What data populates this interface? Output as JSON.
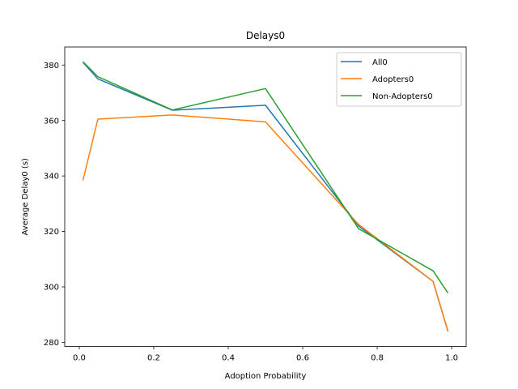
{
  "chart_data": {
    "type": "line",
    "title": "Delays0",
    "xlabel": "Adoption Probability",
    "ylabel": "Average Delay0 (s)",
    "xlim": [
      -0.039,
      1.039
    ],
    "ylim": [
      278.5,
      386.5
    ],
    "xticks": [
      0.0,
      0.2,
      0.4,
      0.6,
      0.8,
      1.0
    ],
    "xtick_labels": [
      "0.0",
      "0.2",
      "0.4",
      "0.6",
      "0.8",
      "1.0"
    ],
    "yticks": [
      280,
      300,
      320,
      340,
      360,
      380
    ],
    "ytick_labels": [
      "280",
      "300",
      "320",
      "340",
      "360",
      "380"
    ],
    "x": [
      0.01,
      0.05,
      0.25,
      0.5,
      0.75,
      0.95,
      0.99
    ],
    "series": [
      {
        "name": "All0",
        "color": "#1f77b4",
        "values": [
          381.0,
          375.0,
          363.7,
          365.5,
          322.0,
          302.0,
          284.0
        ]
      },
      {
        "name": "Adopters0",
        "color": "#ff7f0e",
        "values": [
          338.5,
          360.5,
          362.0,
          359.5,
          322.5,
          302.0,
          284.0
        ]
      },
      {
        "name": "Non-Adopters0",
        "color": "#2ca02c",
        "values": [
          381.2,
          375.8,
          363.8,
          371.5,
          321.0,
          305.8,
          297.8
        ]
      }
    ],
    "legend": {
      "position": "top-right"
    },
    "grid": false
  }
}
